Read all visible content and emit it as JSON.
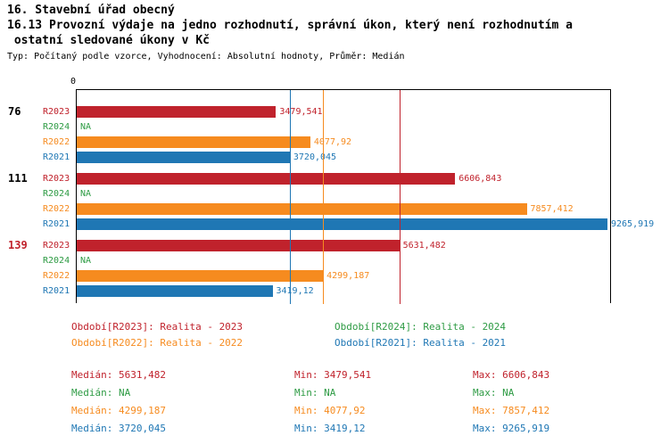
{
  "title": {
    "line1": "16. Stavební úřad obecný",
    "line2": "16.13 Provozní výdaje na jedno rozhodnutí, správní úkon, který není rozhodnutím a",
    "line3": " ostatní sledované úkony v Kč"
  },
  "meta": "Typ: Počítaný podle vzorce, Vyhodnocení: Absolutní hodnoty, Průměr: Medián",
  "axis": {
    "zero_label": "0",
    "max": 9344
  },
  "colors": {
    "r2023": "#c0222c",
    "r2024": "#2e9b44",
    "r2022": "#f68b1f",
    "r2021": "#1f77b4",
    "group_highlight": "#c0222c",
    "group_normal": "#000000"
  },
  "chart_data": {
    "type": "bar",
    "orientation": "horizontal",
    "title": "16.13 Provozní výdaje na jedno rozhodnutí, správní úkon, který není rozhodnutím a ostatní sledované úkony v Kč",
    "xlim": [
      0,
      9344
    ],
    "grid": false,
    "legend_position": "bottom",
    "series_names": [
      "R2023",
      "R2024",
      "R2022",
      "R2021"
    ],
    "groups": [
      {
        "label": "76",
        "label_color_key": "group_normal",
        "bars": [
          {
            "series": "R2023",
            "value": 3479.541,
            "display": "3479,541"
          },
          {
            "series": "R2024",
            "value": null,
            "display": "NA"
          },
          {
            "series": "R2022",
            "value": 4077.92,
            "display": "4077,92"
          },
          {
            "series": "R2021",
            "value": 3720.045,
            "display": "3720,045"
          }
        ]
      },
      {
        "label": "111",
        "label_color_key": "group_normal",
        "bars": [
          {
            "series": "R2023",
            "value": 6606.843,
            "display": "6606,843"
          },
          {
            "series": "R2024",
            "value": null,
            "display": "NA"
          },
          {
            "series": "R2022",
            "value": 7857.412,
            "display": "7857,412"
          },
          {
            "series": "R2021",
            "value": 9265.919,
            "display": "9265,919"
          }
        ]
      },
      {
        "label": "139",
        "label_color_key": "group_highlight",
        "bars": [
          {
            "series": "R2023",
            "value": 5631.482,
            "display": "5631,482"
          },
          {
            "series": "R2024",
            "value": null,
            "display": "NA"
          },
          {
            "series": "R2022",
            "value": 4299.187,
            "display": "4299,187"
          },
          {
            "series": "R2021",
            "value": 3419.12,
            "display": "3419,12"
          }
        ]
      }
    ],
    "median_lines": [
      {
        "series": "R2023",
        "value": 5631.482
      },
      {
        "series": "R2022",
        "value": 4299.187
      },
      {
        "series": "R2021",
        "value": 3720.045
      }
    ]
  },
  "legend": [
    {
      "row": 0,
      "col": 0,
      "color_key": "r2023",
      "text": "Období[R2023]: Realita - 2023"
    },
    {
      "row": 0,
      "col": 1,
      "color_key": "r2024",
      "text": "Období[R2024]: Realita - 2024"
    },
    {
      "row": 1,
      "col": 0,
      "color_key": "r2022",
      "text": "Období[R2022]: Realita - 2022"
    },
    {
      "row": 1,
      "col": 1,
      "color_key": "r2021",
      "text": "Období[R2021]: Realita - 2021"
    }
  ],
  "stats": [
    {
      "color_key": "r2023",
      "median": "Medián: 5631,482",
      "min": "Min: 3479,541",
      "max": "Max: 6606,843"
    },
    {
      "color_key": "r2024",
      "median": "Medián: NA",
      "min": "Min: NA",
      "max": "Max: NA"
    },
    {
      "color_key": "r2022",
      "median": "Medián: 4299,187",
      "min": "Min: 4077,92",
      "max": "Max: 7857,412"
    },
    {
      "color_key": "r2021",
      "median": "Medián: 3720,045",
      "min": "Min: 3419,12",
      "max": "Max: 9265,919"
    }
  ]
}
